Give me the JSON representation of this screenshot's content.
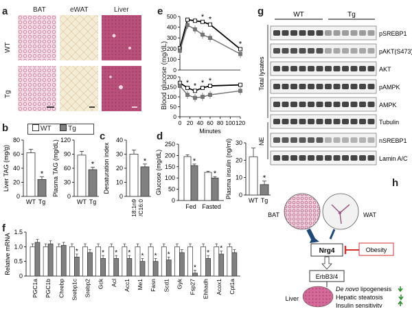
{
  "panel_letters": {
    "a": "a",
    "b": "b",
    "c": "c",
    "d": "d",
    "e": "e",
    "f": "f",
    "g": "g",
    "h": "h"
  },
  "panel_a": {
    "col_labels": [
      "BAT",
      "eWAT",
      "Liver"
    ],
    "row_labels": [
      "WT",
      "Tg"
    ]
  },
  "legend": {
    "wt": "WT",
    "tg": "Tg"
  },
  "colors": {
    "wt_bar": "#ffffff",
    "tg_bar": "#808080",
    "arrow_up": "#2e8b2e",
    "obesity": "#d03030",
    "bat_arrow": "#1f4a78"
  },
  "chart_data": [
    {
      "id": "b1",
      "type": "bar",
      "ylabel": "Liver TAG (mg/g)",
      "ylim": [
        0,
        80
      ],
      "yticks": [
        "0",
        "20",
        "40",
        "60",
        "80"
      ],
      "categories": [
        "WT",
        "Tg"
      ],
      "values": [
        62,
        24
      ],
      "errors": [
        5,
        4
      ],
      "sig": [
        false,
        true
      ]
    },
    {
      "id": "b2",
      "type": "bar",
      "ylabel": "Plasma TAG (mg/dL)",
      "ylim": [
        0,
        120
      ],
      "yticks": [
        "0",
        "30",
        "60",
        "90",
        "120"
      ],
      "categories": [
        "WT",
        "Tg"
      ],
      "values": [
        88,
        57
      ],
      "errors": [
        8,
        5
      ],
      "sig": [
        false,
        true
      ]
    },
    {
      "id": "c",
      "type": "bar",
      "ylabel": "Desaturation index",
      "ylim": [
        0,
        40
      ],
      "yticks": [
        "0",
        "10",
        "20",
        "30",
        "40"
      ],
      "categories": [
        "WT",
        "Tg"
      ],
      "values": [
        30,
        21
      ],
      "errors": [
        3,
        2
      ],
      "sig": [
        false,
        true
      ],
      "xlabel": "C18:1n9 /C16:0"
    },
    {
      "id": "d1",
      "type": "bar",
      "ylabel": "Glucose (mg/dL)",
      "ylim": [
        0,
        250
      ],
      "yticks": [
        "0",
        "50",
        "100",
        "150",
        "200",
        "250"
      ],
      "categories": [
        "Fed",
        "Fasted"
      ],
      "series": [
        {
          "name": "WT",
          "values": [
            195,
            125
          ],
          "errors": [
            8,
            5
          ]
        },
        {
          "name": "Tg",
          "values": [
            155,
            100
          ],
          "errors": [
            7,
            6
          ]
        }
      ],
      "sig": [
        true,
        true
      ]
    },
    {
      "id": "d2",
      "type": "bar",
      "ylabel": "Plasma insulin (ng/ml)",
      "ylim": [
        0,
        30
      ],
      "yticks": [
        "0",
        "10",
        "20",
        "30"
      ],
      "categories": [
        "WT",
        "Tg"
      ],
      "values": [
        22,
        6
      ],
      "errors": [
        5,
        2
      ],
      "sig": [
        false,
        true
      ]
    },
    {
      "id": "e1",
      "type": "line",
      "ylim": [
        0,
        500
      ],
      "yticks": [
        "0",
        "100",
        "200",
        "300",
        "400",
        "500"
      ],
      "x": [
        0,
        15,
        30,
        45,
        60,
        120
      ],
      "series": [
        {
          "name": "WT",
          "values": [
            205,
            470,
            460,
            450,
            425,
            195
          ]
        },
        {
          "name": "Tg",
          "values": [
            180,
            420,
            380,
            330,
            300,
            150
          ]
        }
      ],
      "sig": [
        false,
        false,
        false,
        true,
        true,
        true
      ]
    },
    {
      "id": "e2",
      "type": "line",
      "ylim": [
        0,
        200
      ],
      "yticks": [
        "0",
        "50",
        "100",
        "150",
        "200"
      ],
      "x": [
        0,
        15,
        30,
        45,
        60,
        120
      ],
      "series": [
        {
          "name": "WT",
          "values": [
            170,
            145,
            130,
            145,
            155,
            160
          ]
        },
        {
          "name": "Tg",
          "values": [
            155,
            110,
            95,
            100,
            110,
            130
          ]
        }
      ],
      "sig": [
        false,
        true,
        true,
        true,
        true,
        false
      ],
      "xticks": [
        "0",
        "20",
        "40",
        "60",
        "80",
        "100",
        "120"
      ],
      "xlabel": "Minutes"
    },
    {
      "id": "f",
      "type": "bar",
      "ylabel": "Relative mRNA",
      "ylim": [
        0,
        1.5
      ],
      "yticks": [
        "0",
        "0.5",
        "1.0",
        "1.5"
      ],
      "categories": [
        "PGC1a",
        "PGC1b",
        "Chrebp",
        "Srebp1c",
        "Srebp2",
        "Gck",
        "Acl",
        "Acc1",
        "Me1",
        "Fasn",
        "Scd1",
        "Gyk",
        "Fsp27",
        "Ehhadh",
        "Acox1",
        "Cpt1a"
      ],
      "series": [
        {
          "name": "WT",
          "values": [
            1,
            1,
            1,
            1,
            1,
            1,
            1,
            1,
            1,
            1,
            1,
            1,
            1,
            1,
            1,
            1
          ]
        },
        {
          "name": "Tg",
          "values": [
            1.15,
            1.1,
            1.05,
            0.65,
            0.8,
            0.6,
            0.6,
            0.6,
            0.5,
            0.5,
            0.55,
            0.8,
            0.1,
            0.6,
            0.75,
            0.8
          ]
        }
      ],
      "sig": [
        false,
        false,
        false,
        true,
        false,
        true,
        true,
        true,
        true,
        true,
        true,
        false,
        true,
        true,
        true,
        false
      ]
    }
  ],
  "panel_e": {
    "ylabel": "Blood glucose (mg/dL)"
  },
  "panel_g": {
    "group_wt": "WT",
    "group_tg": "Tg",
    "side_total": "Total lysates",
    "side_ne": "NE",
    "bands": [
      "pSREBP1",
      "pAKT(S473)",
      "AKT",
      "pAMPK",
      "AMPK",
      "Tubulin",
      "nSREBP1",
      "Lamin A/C"
    ]
  },
  "panel_h": {
    "bat": "BAT",
    "wat": "WAT",
    "nrg4": "Nrg4",
    "obesity": "Obesity",
    "receptor": "ErbB3/4",
    "liver": "Liver",
    "effect1_italic": "De novo",
    "effect1_rest": " lipogenesis",
    "effect2": "Hepatic steatosis",
    "effect3": "Insulin sensitivity"
  }
}
